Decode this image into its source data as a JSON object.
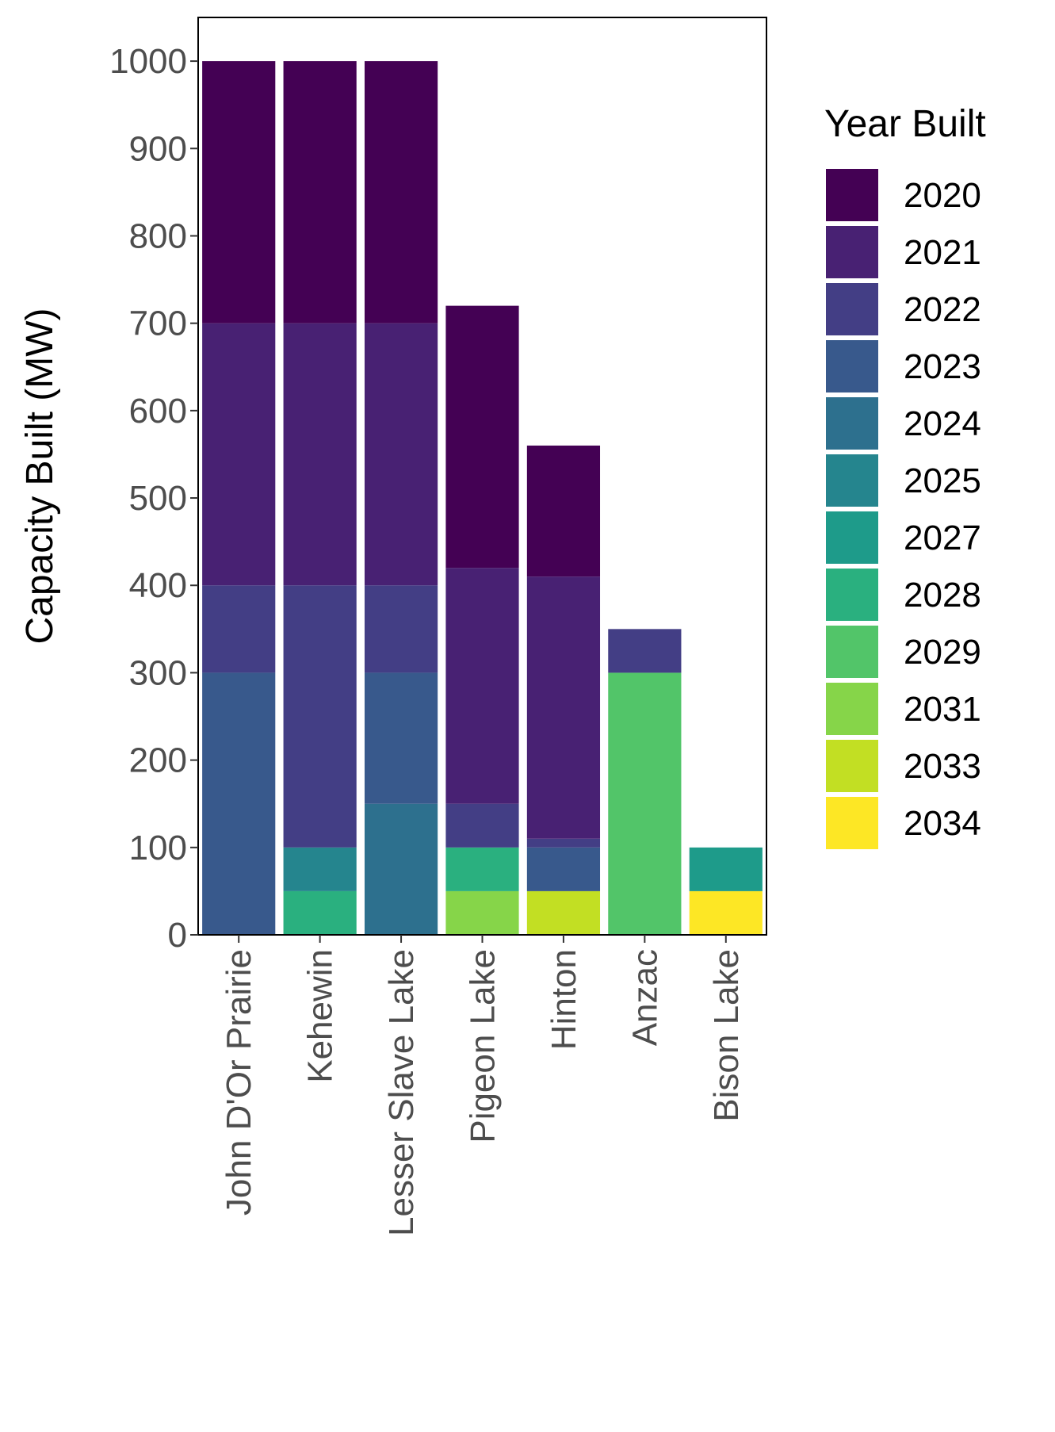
{
  "chart_data": {
    "type": "bar",
    "stacked": true,
    "ylabel": "Capacity Built (MW)",
    "xlabel": "",
    "ylim": [
      0,
      1050
    ],
    "yticks": [
      0,
      100,
      200,
      300,
      400,
      500,
      600,
      700,
      800,
      900,
      1000
    ],
    "grid": false,
    "legend_placement": "right",
    "legend_title": "Year Built",
    "categories": [
      "John D'Or Prairie",
      "Kehewin",
      "Lesser Slave Lake",
      "Pigeon Lake",
      "Hinton",
      "Anzac",
      "Bison Lake"
    ],
    "series": [
      {
        "name": "2034",
        "color": "#fde725",
        "values": [
          0,
          0,
          0,
          0,
          0,
          0,
          50
        ]
      },
      {
        "name": "2033",
        "color": "#c2df23",
        "values": [
          0,
          0,
          0,
          0,
          50,
          0,
          0
        ]
      },
      {
        "name": "2031",
        "color": "#86d549",
        "values": [
          0,
          0,
          0,
          50,
          0,
          0,
          0
        ]
      },
      {
        "name": "2029",
        "color": "#52c569",
        "values": [
          0,
          0,
          0,
          0,
          0,
          300,
          0
        ]
      },
      {
        "name": "2028",
        "color": "#2ab07f",
        "values": [
          0,
          50,
          0,
          50,
          0,
          0,
          0
        ]
      },
      {
        "name": "2027",
        "color": "#1e9b8a",
        "values": [
          0,
          0,
          0,
          0,
          0,
          0,
          50
        ]
      },
      {
        "name": "2025",
        "color": "#25858e",
        "values": [
          0,
          50,
          0,
          0,
          0,
          0,
          0
        ]
      },
      {
        "name": "2024",
        "color": "#2d708e",
        "values": [
          0,
          0,
          150,
          0,
          0,
          0,
          0
        ]
      },
      {
        "name": "2023",
        "color": "#38598c",
        "values": [
          300,
          0,
          150,
          0,
          50,
          0,
          0
        ]
      },
      {
        "name": "2022",
        "color": "#433e85",
        "values": [
          100,
          300,
          100,
          50,
          10,
          50,
          0
        ]
      },
      {
        "name": "2021",
        "color": "#482173",
        "values": [
          300,
          300,
          300,
          270,
          300,
          0,
          0
        ]
      },
      {
        "name": "2020",
        "color": "#440154",
        "values": [
          300,
          300,
          300,
          300,
          150,
          0,
          0
        ]
      }
    ],
    "legend_order": [
      "2020",
      "2021",
      "2022",
      "2023",
      "2024",
      "2025",
      "2027",
      "2028",
      "2029",
      "2031",
      "2033",
      "2034"
    ]
  }
}
